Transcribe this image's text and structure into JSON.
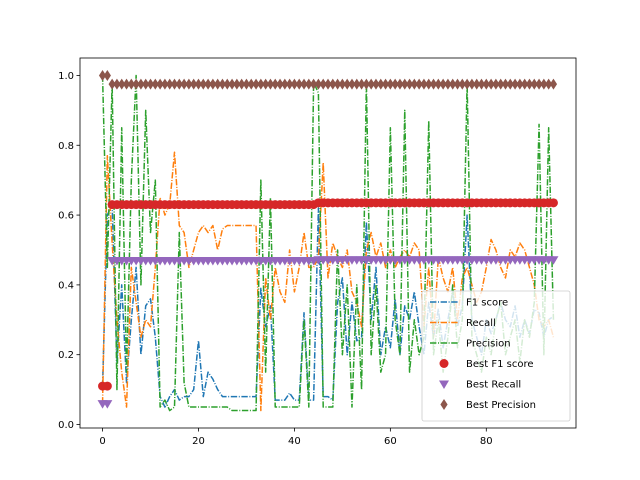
{
  "chart_data": {
    "type": "line",
    "title": "",
    "xlabel": "",
    "ylabel": "",
    "xlim": [
      -4.7,
      98.7
    ],
    "ylim": [
      -0.01,
      1.05
    ],
    "xticks": [
      0,
      20,
      40,
      60,
      80
    ],
    "yticks": [
      0.0,
      0.2,
      0.4,
      0.6,
      0.8,
      1.0
    ],
    "xtick_labels": [
      "0",
      "20",
      "40",
      "60",
      "80"
    ],
    "ytick_labels": [
      "0.0",
      "0.2",
      "0.4",
      "0.6",
      "0.8",
      "1.0"
    ],
    "grid": false,
    "legend_position": "lower-right",
    "series": [
      {
        "name": "F1 score",
        "kind": "line",
        "style": "dashdot",
        "color": "#1f77b4",
        "x": [
          0,
          1,
          2,
          3,
          4,
          5,
          6,
          7,
          8,
          9,
          10,
          11,
          12,
          13,
          14,
          15,
          16,
          17,
          18,
          19,
          20,
          21,
          22,
          23,
          24,
          25,
          26,
          27,
          28,
          29,
          30,
          31,
          32,
          33,
          34,
          35,
          36,
          37,
          38,
          39,
          40,
          41,
          42,
          43,
          44,
          45,
          46,
          47,
          48,
          49,
          50,
          51,
          52,
          53,
          54,
          55,
          56,
          57,
          58,
          59,
          60,
          61,
          62,
          63,
          64,
          65,
          66,
          67,
          68,
          69,
          70,
          71,
          72,
          73,
          74,
          75,
          76,
          77,
          78,
          79,
          80,
          81,
          82,
          83,
          84,
          85,
          86,
          87,
          88,
          89,
          90,
          91,
          92,
          93,
          94
        ],
        "y": [
          0.11,
          0.6,
          0.63,
          0.18,
          0.4,
          0.12,
          0.3,
          0.45,
          0.2,
          0.34,
          0.36,
          0.25,
          0.08,
          0.05,
          0.08,
          0.1,
          0.07,
          0.08,
          0.08,
          0.1,
          0.24,
          0.08,
          0.15,
          0.13,
          0.1,
          0.08,
          0.08,
          0.08,
          0.08,
          0.08,
          0.08,
          0.08,
          0.08,
          0.39,
          0.28,
          0.34,
          0.07,
          0.07,
          0.07,
          0.09,
          0.07,
          0.07,
          0.32,
          0.07,
          0.07,
          0.62,
          0.08,
          0.08,
          0.07,
          0.35,
          0.42,
          0.2,
          0.35,
          0.24,
          0.25,
          0.58,
          0.3,
          0.45,
          0.2,
          0.28,
          0.22,
          0.36,
          0.2,
          0.34,
          0.3,
          0.38,
          0.28,
          0.2,
          0.35,
          0.25,
          0.33,
          0.22,
          0.3,
          0.38,
          0.28,
          0.34,
          0.6,
          0.3,
          0.25,
          0.2,
          0.3,
          0.26,
          0.3,
          0.35,
          0.3,
          0.28,
          0.34,
          0.25,
          0.3,
          0.26,
          0.33,
          0.32,
          0.25,
          0.3,
          0.31
        ]
      },
      {
        "name": "Recall",
        "kind": "line",
        "style": "dashdot",
        "color": "#ff7f0e",
        "x": [
          0,
          1,
          2,
          3,
          4,
          5,
          6,
          7,
          8,
          9,
          10,
          11,
          12,
          13,
          14,
          15,
          16,
          17,
          18,
          19,
          20,
          21,
          22,
          23,
          24,
          25,
          26,
          27,
          28,
          29,
          30,
          31,
          32,
          33,
          34,
          35,
          36,
          37,
          38,
          39,
          40,
          41,
          42,
          43,
          44,
          45,
          46,
          47,
          48,
          49,
          50,
          51,
          52,
          53,
          54,
          55,
          56,
          57,
          58,
          59,
          60,
          61,
          62,
          63,
          64,
          65,
          66,
          67,
          68,
          69,
          70,
          71,
          72,
          73,
          74,
          75,
          76,
          77,
          78,
          79,
          80,
          81,
          82,
          83,
          84,
          85,
          86,
          87,
          88,
          89,
          90,
          91,
          92,
          93,
          94
        ],
        "y": [
          0.06,
          0.77,
          0.52,
          0.3,
          0.15,
          0.05,
          0.45,
          0.35,
          0.25,
          0.3,
          0.28,
          0.45,
          0.65,
          0.6,
          0.63,
          0.78,
          0.57,
          0.55,
          0.45,
          0.5,
          0.55,
          0.57,
          0.55,
          0.57,
          0.5,
          0.56,
          0.57,
          0.57,
          0.57,
          0.57,
          0.57,
          0.57,
          0.57,
          0.04,
          0.42,
          0.3,
          0.45,
          0.38,
          0.35,
          0.5,
          0.38,
          0.45,
          0.55,
          0.45,
          0.45,
          0.48,
          0.75,
          0.42,
          0.52,
          0.48,
          0.45,
          0.5,
          0.38,
          0.35,
          0.28,
          0.5,
          0.55,
          0.48,
          0.52,
          0.45,
          0.5,
          0.45,
          0.48,
          0.5,
          0.48,
          0.52,
          0.5,
          0.28,
          0.45,
          0.25,
          0.48,
          0.42,
          0.38,
          0.45,
          0.3,
          0.42,
          0.45,
          0.4,
          0.35,
          0.38,
          0.45,
          0.53,
          0.5,
          0.45,
          0.42,
          0.5,
          0.48,
          0.52,
          0.5,
          0.45,
          0.4,
          0.3,
          0.28,
          0.3,
          0.25
        ]
      },
      {
        "name": "Precision",
        "kind": "line",
        "style": "dashdot",
        "color": "#2ca02c",
        "x": [
          0,
          1,
          2,
          3,
          4,
          5,
          6,
          7,
          8,
          9,
          10,
          11,
          12,
          13,
          14,
          15,
          16,
          17,
          18,
          19,
          20,
          21,
          22,
          23,
          24,
          25,
          26,
          27,
          28,
          29,
          30,
          31,
          32,
          33,
          34,
          35,
          36,
          37,
          38,
          39,
          40,
          41,
          42,
          43,
          44,
          45,
          46,
          47,
          48,
          49,
          50,
          51,
          52,
          53,
          54,
          55,
          56,
          57,
          58,
          59,
          60,
          61,
          62,
          63,
          64,
          65,
          66,
          67,
          68,
          69,
          70,
          71,
          72,
          73,
          74,
          75,
          76,
          77,
          78,
          79,
          80,
          81,
          82,
          83,
          84,
          85,
          86,
          87,
          88,
          89,
          90,
          91,
          92,
          93,
          94
        ],
        "y": [
          1.0,
          0.45,
          0.98,
          0.1,
          0.85,
          0.15,
          0.7,
          1.0,
          0.4,
          0.9,
          0.55,
          0.7,
          0.05,
          0.07,
          0.04,
          0.05,
          0.55,
          0.12,
          0.05,
          0.05,
          0.05,
          0.05,
          0.05,
          0.05,
          0.05,
          0.05,
          0.05,
          0.04,
          0.04,
          0.04,
          0.04,
          0.04,
          0.04,
          0.7,
          0.15,
          0.65,
          0.05,
          0.05,
          0.05,
          0.05,
          0.05,
          0.05,
          0.3,
          0.05,
          0.98,
          0.95,
          0.05,
          0.05,
          0.05,
          0.5,
          0.2,
          0.4,
          0.05,
          0.4,
          0.1,
          0.98,
          0.2,
          0.4,
          0.15,
          0.2,
          0.85,
          0.3,
          0.2,
          0.9,
          0.15,
          0.3,
          0.2,
          0.25,
          0.87,
          0.2,
          0.3,
          0.15,
          0.25,
          0.4,
          0.22,
          0.3,
          0.98,
          0.25,
          0.2,
          0.15,
          0.25,
          0.2,
          0.3,
          0.35,
          0.2,
          0.25,
          0.3,
          0.18,
          0.3,
          0.25,
          0.35,
          0.86,
          0.2,
          0.85,
          0.3
        ]
      },
      {
        "name": "Best F1 score",
        "kind": "markers",
        "marker": "circle",
        "color": "#d62728",
        "x": [
          0,
          1,
          2,
          3,
          4,
          5,
          6,
          7,
          8,
          9,
          10,
          11,
          12,
          13,
          14,
          15,
          16,
          17,
          18,
          19,
          20,
          21,
          22,
          23,
          24,
          25,
          26,
          27,
          28,
          29,
          30,
          31,
          32,
          33,
          34,
          35,
          36,
          37,
          38,
          39,
          40,
          41,
          42,
          43,
          44,
          45,
          46,
          47,
          48,
          49,
          50,
          51,
          52,
          53,
          54,
          55,
          56,
          57,
          58,
          59,
          60,
          61,
          62,
          63,
          64,
          65,
          66,
          67,
          68,
          69,
          70,
          71,
          72,
          73,
          74,
          75,
          76,
          77,
          78,
          79,
          80,
          81,
          82,
          83,
          84,
          85,
          86,
          87,
          88,
          89,
          90,
          91,
          92,
          93,
          94
        ],
        "y": [
          0.11,
          0.11,
          0.63,
          0.63,
          0.63,
          0.63,
          0.63,
          0.63,
          0.63,
          0.63,
          0.63,
          0.63,
          0.63,
          0.63,
          0.63,
          0.63,
          0.63,
          0.63,
          0.63,
          0.63,
          0.63,
          0.63,
          0.63,
          0.63,
          0.63,
          0.63,
          0.63,
          0.63,
          0.63,
          0.63,
          0.63,
          0.63,
          0.63,
          0.63,
          0.63,
          0.63,
          0.63,
          0.63,
          0.63,
          0.63,
          0.63,
          0.63,
          0.63,
          0.63,
          0.63,
          0.635,
          0.635,
          0.635,
          0.635,
          0.635,
          0.635,
          0.635,
          0.635,
          0.635,
          0.635,
          0.635,
          0.635,
          0.635,
          0.635,
          0.635,
          0.635,
          0.635,
          0.635,
          0.635,
          0.635,
          0.635,
          0.635,
          0.635,
          0.635,
          0.635,
          0.635,
          0.635,
          0.635,
          0.635,
          0.635,
          0.635,
          0.635,
          0.635,
          0.635,
          0.635,
          0.635,
          0.635,
          0.635,
          0.635,
          0.635,
          0.635,
          0.635,
          0.635,
          0.635,
          0.635,
          0.635,
          0.635,
          0.635,
          0.635,
          0.635
        ]
      },
      {
        "name": "Best Recall",
        "kind": "markers",
        "marker": "triangle-down",
        "color": "#9467bd",
        "x": [
          0,
          1,
          2,
          3,
          4,
          5,
          6,
          7,
          8,
          9,
          10,
          11,
          12,
          13,
          14,
          15,
          16,
          17,
          18,
          19,
          20,
          21,
          22,
          23,
          24,
          25,
          26,
          27,
          28,
          29,
          30,
          31,
          32,
          33,
          34,
          35,
          36,
          37,
          38,
          39,
          40,
          41,
          42,
          43,
          44,
          45,
          46,
          47,
          48,
          49,
          50,
          51,
          52,
          53,
          54,
          55,
          56,
          57,
          58,
          59,
          60,
          61,
          62,
          63,
          64,
          65,
          66,
          67,
          68,
          69,
          70,
          71,
          72,
          73,
          74,
          75,
          76,
          77,
          78,
          79,
          80,
          81,
          82,
          83,
          84,
          85,
          86,
          87,
          88,
          89,
          90,
          91,
          92,
          93,
          94
        ],
        "y": [
          0.06,
          0.06,
          0.47,
          0.47,
          0.47,
          0.47,
          0.47,
          0.47,
          0.47,
          0.47,
          0.47,
          0.47,
          0.47,
          0.47,
          0.47,
          0.47,
          0.47,
          0.47,
          0.47,
          0.47,
          0.47,
          0.47,
          0.47,
          0.47,
          0.47,
          0.47,
          0.47,
          0.47,
          0.47,
          0.47,
          0.47,
          0.47,
          0.47,
          0.47,
          0.47,
          0.47,
          0.47,
          0.47,
          0.47,
          0.47,
          0.47,
          0.47,
          0.47,
          0.47,
          0.47,
          0.472,
          0.472,
          0.472,
          0.472,
          0.472,
          0.472,
          0.472,
          0.472,
          0.472,
          0.472,
          0.472,
          0.472,
          0.472,
          0.472,
          0.472,
          0.472,
          0.472,
          0.472,
          0.472,
          0.472,
          0.472,
          0.472,
          0.472,
          0.472,
          0.472,
          0.472,
          0.472,
          0.472,
          0.472,
          0.472,
          0.472,
          0.472,
          0.472,
          0.472,
          0.472,
          0.472,
          0.472,
          0.472,
          0.472,
          0.472,
          0.472,
          0.472,
          0.472,
          0.472,
          0.472,
          0.472,
          0.472,
          0.472,
          0.472,
          0.472
        ]
      },
      {
        "name": "Best Precision",
        "kind": "markers",
        "marker": "thin-diamond",
        "color": "#8c564b",
        "x": [
          0,
          1,
          2,
          3,
          4,
          5,
          6,
          7,
          8,
          9,
          10,
          11,
          12,
          13,
          14,
          15,
          16,
          17,
          18,
          19,
          20,
          21,
          22,
          23,
          24,
          25,
          26,
          27,
          28,
          29,
          30,
          31,
          32,
          33,
          34,
          35,
          36,
          37,
          38,
          39,
          40,
          41,
          42,
          43,
          44,
          45,
          46,
          47,
          48,
          49,
          50,
          51,
          52,
          53,
          54,
          55,
          56,
          57,
          58,
          59,
          60,
          61,
          62,
          63,
          64,
          65,
          66,
          67,
          68,
          69,
          70,
          71,
          72,
          73,
          74,
          75,
          76,
          77,
          78,
          79,
          80,
          81,
          82,
          83,
          84,
          85,
          86,
          87,
          88,
          89,
          90,
          91,
          92,
          93,
          94
        ],
        "y": [
          1.0,
          1.0,
          0.975,
          0.975,
          0.975,
          0.975,
          0.975,
          0.975,
          0.975,
          0.975,
          0.975,
          0.975,
          0.975,
          0.975,
          0.975,
          0.975,
          0.975,
          0.975,
          0.975,
          0.975,
          0.975,
          0.975,
          0.975,
          0.975,
          0.975,
          0.975,
          0.975,
          0.975,
          0.975,
          0.975,
          0.975,
          0.975,
          0.975,
          0.975,
          0.975,
          0.975,
          0.975,
          0.975,
          0.975,
          0.975,
          0.975,
          0.975,
          0.975,
          0.975,
          0.975,
          0.975,
          0.975,
          0.975,
          0.975,
          0.975,
          0.975,
          0.975,
          0.975,
          0.975,
          0.975,
          0.975,
          0.975,
          0.975,
          0.975,
          0.975,
          0.975,
          0.975,
          0.975,
          0.975,
          0.975,
          0.975,
          0.975,
          0.975,
          0.975,
          0.975,
          0.975,
          0.975,
          0.975,
          0.975,
          0.975,
          0.975,
          0.975,
          0.975,
          0.975,
          0.975,
          0.975,
          0.975,
          0.975,
          0.975,
          0.975,
          0.975,
          0.975,
          0.975,
          0.975,
          0.975,
          0.975,
          0.975,
          0.975,
          0.975,
          0.975
        ]
      }
    ]
  }
}
